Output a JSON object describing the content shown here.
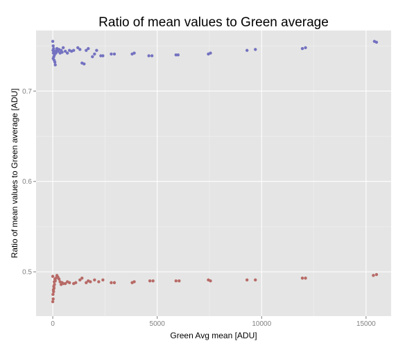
{
  "colors": {
    "panel_bg": "#e5e5e5",
    "grid_major": "#ffffff",
    "grid_minor": "#f2f2f2",
    "series_blue": "#7472c0",
    "series_red": "#b76a66",
    "tick_text": "#7f7f7f",
    "title_text": "#000000"
  },
  "chart_data": {
    "type": "scatter",
    "title": "Ratio of mean values to Green average",
    "xlabel": "Green Avg mean [ADU]",
    "ylabel": "Ratio of mean values to Green average [ADU]",
    "xlim": [
      -800,
      16200
    ],
    "ylim": [
      0.451,
      0.767
    ],
    "x_ticks": [
      0,
      5000,
      10000,
      15000
    ],
    "x_tick_labels": [
      "0",
      "5000",
      "10000",
      "15000"
    ],
    "y_ticks": [
      0.5,
      0.6,
      0.7
    ],
    "y_tick_labels": [
      "0.5",
      "0.6",
      "0.7"
    ],
    "grid": true,
    "legend": "none",
    "series": [
      {
        "color": "#7472c0",
        "points": [
          [
            0,
            0.755
          ],
          [
            20,
            0.75
          ],
          [
            40,
            0.747
          ],
          [
            10,
            0.745
          ],
          [
            60,
            0.744
          ],
          [
            30,
            0.742
          ],
          [
            80,
            0.74
          ],
          [
            50,
            0.738
          ],
          [
            20,
            0.736
          ],
          [
            70,
            0.734
          ],
          [
            100,
            0.732
          ],
          [
            120,
            0.729
          ],
          [
            150,
            0.742
          ],
          [
            180,
            0.745
          ],
          [
            200,
            0.747
          ],
          [
            250,
            0.744
          ],
          [
            300,
            0.746
          ],
          [
            350,
            0.742
          ],
          [
            400,
            0.745
          ],
          [
            450,
            0.743
          ],
          [
            500,
            0.748
          ],
          [
            600,
            0.744
          ],
          [
            700,
            0.742
          ],
          [
            800,
            0.745
          ],
          [
            900,
            0.744
          ],
          [
            1000,
            0.745
          ],
          [
            1200,
            0.748
          ],
          [
            1300,
            0.746
          ],
          [
            1400,
            0.731
          ],
          [
            1500,
            0.73
          ],
          [
            1600,
            0.745
          ],
          [
            1700,
            0.747
          ],
          [
            1900,
            0.738
          ],
          [
            2000,
            0.741
          ],
          [
            2100,
            0.745
          ],
          [
            2300,
            0.739
          ],
          [
            2400,
            0.739
          ],
          [
            2800,
            0.741
          ],
          [
            2950,
            0.741
          ],
          [
            3800,
            0.741
          ],
          [
            3900,
            0.742
          ],
          [
            4600,
            0.739
          ],
          [
            4750,
            0.739
          ],
          [
            5900,
            0.74
          ],
          [
            6000,
            0.74
          ],
          [
            7450,
            0.741
          ],
          [
            7550,
            0.742
          ],
          [
            9300,
            0.745
          ],
          [
            9700,
            0.746
          ],
          [
            11950,
            0.747
          ],
          [
            12100,
            0.748
          ],
          [
            15400,
            0.755
          ],
          [
            15500,
            0.754
          ]
        ]
      },
      {
        "color": "#b76a66",
        "points": [
          [
            0,
            0.467
          ],
          [
            20,
            0.47
          ],
          [
            10,
            0.475
          ],
          [
            40,
            0.478
          ],
          [
            30,
            0.48
          ],
          [
            60,
            0.482
          ],
          [
            50,
            0.484
          ],
          [
            80,
            0.486
          ],
          [
            70,
            0.489
          ],
          [
            100,
            0.492
          ],
          [
            0,
            0.495
          ],
          [
            120,
            0.49
          ],
          [
            150,
            0.493
          ],
          [
            200,
            0.496
          ],
          [
            250,
            0.494
          ],
          [
            300,
            0.492
          ],
          [
            350,
            0.489
          ],
          [
            400,
            0.486
          ],
          [
            450,
            0.488
          ],
          [
            500,
            0.487
          ],
          [
            600,
            0.487
          ],
          [
            700,
            0.489
          ],
          [
            800,
            0.488
          ],
          [
            1000,
            0.487
          ],
          [
            1100,
            0.488
          ],
          [
            1300,
            0.491
          ],
          [
            1400,
            0.493
          ],
          [
            1600,
            0.488
          ],
          [
            1700,
            0.49
          ],
          [
            1800,
            0.489
          ],
          [
            2000,
            0.491
          ],
          [
            2200,
            0.489
          ],
          [
            2400,
            0.491
          ],
          [
            2800,
            0.488
          ],
          [
            2950,
            0.488
          ],
          [
            3800,
            0.488
          ],
          [
            3900,
            0.489
          ],
          [
            4650,
            0.49
          ],
          [
            4800,
            0.49
          ],
          [
            5900,
            0.49
          ],
          [
            6050,
            0.49
          ],
          [
            7450,
            0.491
          ],
          [
            7550,
            0.49
          ],
          [
            9300,
            0.491
          ],
          [
            9700,
            0.491
          ],
          [
            11950,
            0.493
          ],
          [
            12100,
            0.493
          ],
          [
            15350,
            0.496
          ],
          [
            15500,
            0.497
          ]
        ]
      }
    ]
  }
}
